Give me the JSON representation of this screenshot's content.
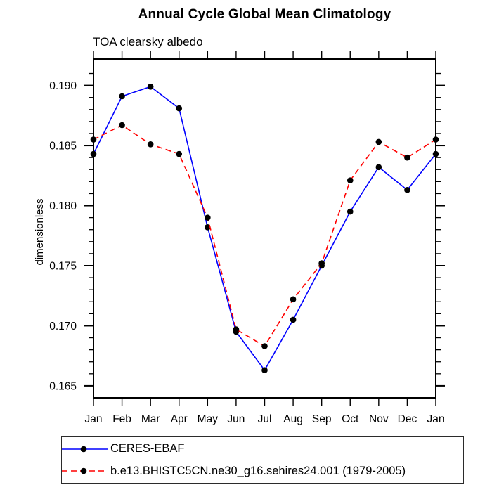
{
  "chart_data": {
    "type": "line",
    "title": "Annual Cycle Global Mean Climatology",
    "subtitle": "TOA clearsky albedo",
    "ylabel": "dimensionless",
    "xlabel": "",
    "categories": [
      "Jan",
      "Feb",
      "Mar",
      "Apr",
      "May",
      "Jun",
      "Jul",
      "Aug",
      "Sep",
      "Oct",
      "Nov",
      "Dec",
      "Jan"
    ],
    "y_ticks": [
      0.165,
      0.17,
      0.175,
      0.18,
      0.185,
      0.19
    ],
    "y_tick_labels": [
      "0.165",
      "0.170",
      "0.175",
      "0.180",
      "0.185",
      "0.190"
    ],
    "y_minor_step": 0.001,
    "ylim": [
      0.164,
      0.1922
    ],
    "grid": false,
    "legend_position": "bottom-left",
    "axis_color": "#000000",
    "series": [
      {
        "name": "CERES-EBAF",
        "color": "#0000ff",
        "line_style": "solid",
        "marker": "circle",
        "marker_color": "#000000",
        "values": [
          0.1843,
          0.1891,
          0.1899,
          0.1881,
          0.1782,
          0.1695,
          0.1663,
          0.1705,
          0.175,
          0.1795,
          0.1832,
          0.1813,
          0.1843
        ]
      },
      {
        "name": "b.e13.BHISTC5CN.ne30_g16.sehires24.001 (1979-2005)",
        "color": "#ff0000",
        "line_style": "dashed",
        "marker": "circle",
        "marker_color": "#000000",
        "values": [
          0.1855,
          0.1867,
          0.1851,
          0.1843,
          0.179,
          0.1697,
          0.1683,
          0.1722,
          0.1752,
          0.1821,
          0.1853,
          0.184,
          0.1855
        ]
      }
    ]
  }
}
